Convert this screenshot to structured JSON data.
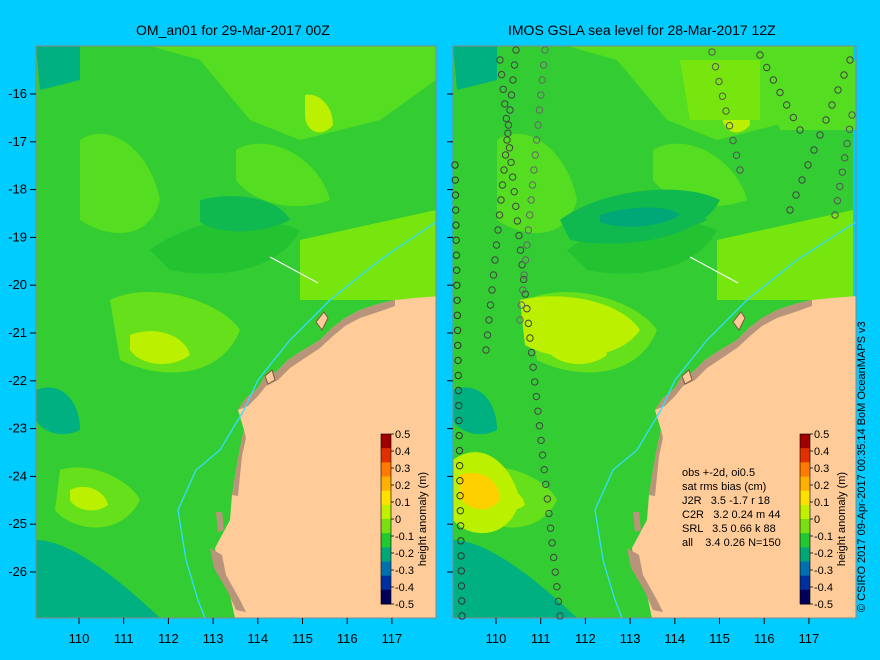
{
  "panels": [
    {
      "title": "OM_an01 for 29-Mar-2017 00Z"
    },
    {
      "title": "IMOS GSLA sea level  for 28-Mar-2017 12Z"
    }
  ],
  "axes": {
    "lon_ticks": [
      "110",
      "111",
      "112",
      "113",
      "114",
      "115",
      "116",
      "117"
    ],
    "lat_ticks": [
      "-16",
      "-17",
      "-18",
      "-19",
      "-20",
      "-21",
      "-22",
      "-23",
      "-24",
      "-25",
      "-26"
    ]
  },
  "colorbar": {
    "label": "height anomaly (m)",
    "ticks": [
      "0.5",
      "0.4",
      "0.3",
      "0.2",
      "0.1",
      "0",
      "-0.1",
      "-0.2",
      "-0.3",
      "-0.4",
      "-0.5"
    ],
    "colors": [
      "#a00000",
      "#e03000",
      "#ff7a00",
      "#ffb000",
      "#ffe000",
      "#bff000",
      "#78e010",
      "#22c830",
      "#00a878",
      "#0070b0",
      "#0030a0",
      "#00005a"
    ]
  },
  "legend": {
    "line1": "obs +-2d, oi0.5",
    "line2": "sat rms bias (cm)",
    "rows": [
      {
        "sat": "J2R",
        "stats": "3.5 -1.7 r 18"
      },
      {
        "sat": "C2R",
        "stats": "3.2 0.24 m 44"
      },
      {
        "sat": "SRL",
        "stats": "3.5 0.66 k 88"
      },
      {
        "sat": "all",
        "stats": "3.4 0.26 N=150"
      }
    ]
  },
  "credit": "© CSIRO 2017   09-Apr-2017 00:35:14 BoM OceanMAPS v3"
}
